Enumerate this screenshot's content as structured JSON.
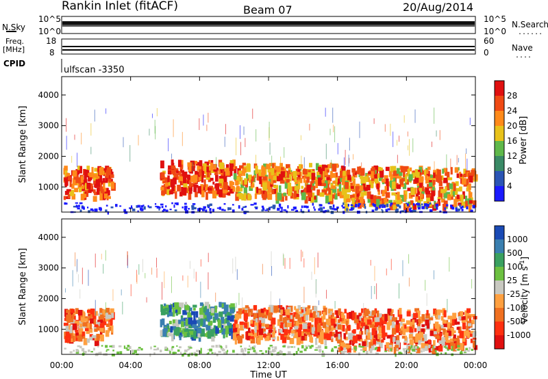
{
  "header": {
    "station": "Rankin Inlet (fitACF)",
    "beam": "Beam 07",
    "date": "20/Aug/2014"
  },
  "top_panels": {
    "nsky_label": "N.Sky",
    "nsearch_label": "N.Search",
    "nsky_ticks": [
      "10^5",
      "10^0"
    ],
    "nsearch_ticks": [
      "10^5",
      "10^0"
    ],
    "freq_label_1": "Freq.",
    "freq_label_2": "[MHz]",
    "freq_ticks": [
      "18",
      "8"
    ],
    "nave_label": "Nave",
    "nave_ticks": [
      "60",
      "0"
    ],
    "cpid_label": "CPID",
    "cpid_value": "ulfscan -3350",
    "dots": "......",
    "dots_short": "...."
  },
  "chart_data": [
    {
      "type": "heatmap",
      "ylabel": "Slant Range [km]",
      "yticks": [
        "1000",
        "2000",
        "3000",
        "4000"
      ],
      "ylim": [
        180,
        4600
      ],
      "xlim": [
        0,
        24
      ],
      "colorbar_title": "Power [dB]",
      "colorbar_ticks": [
        "4",
        "8",
        "12",
        "16",
        "20",
        "24",
        "28"
      ],
      "colors": [
        "#1a1aff",
        "#2b55b5",
        "#3a8a66",
        "#5fb84a",
        "#e8c21a",
        "#ff8a1a",
        "#f04a14",
        "#e01010"
      ],
      "echo_bands": [
        {
          "t0": 0.1,
          "t1": 2.9,
          "r0": 700,
          "r1": 1700,
          "level": 6
        },
        {
          "t0": 5.7,
          "t1": 9.9,
          "r0": 800,
          "r1": 1900,
          "level": 6
        },
        {
          "t0": 9.9,
          "t1": 16.0,
          "r0": 700,
          "r1": 1800,
          "level": 5
        },
        {
          "t0": 16.0,
          "t1": 23.9,
          "r0": 400,
          "r1": 1700,
          "level": 5
        }
      ]
    },
    {
      "type": "heatmap",
      "ylabel": "Slant Range [km]",
      "yticks": [
        "1000",
        "2000",
        "3000",
        "4000"
      ],
      "ylim": [
        180,
        4600
      ],
      "xlim": [
        0,
        24
      ],
      "xticks": [
        "00:00",
        "04:00",
        "08:00",
        "12:00",
        "16:00",
        "20:00",
        "00:00"
      ],
      "xlabel": "Time UT",
      "colorbar_title": "Velocity [m s",
      "colorbar_title_sup": "-1",
      "colorbar_title_end": "]",
      "colorbar_ticks": [
        "1000",
        "500",
        "100",
        "25",
        "-25",
        "-100",
        "-500",
        "-1000"
      ],
      "colors": [
        "#1a4ab5",
        "#3a7fb0",
        "#3aa060",
        "#6cc040",
        "#c8c8c0",
        "#ffa040",
        "#f07020",
        "#ff3010",
        "#e01010"
      ],
      "echo_bands": [
        {
          "t0": 0.1,
          "t1": 2.9,
          "r0": 700,
          "r1": 1700,
          "level": 6
        },
        {
          "t0": 5.7,
          "t1": 9.9,
          "r0": 800,
          "r1": 1900,
          "level": 2
        },
        {
          "t0": 9.9,
          "t1": 16.0,
          "r0": 700,
          "r1": 1800,
          "level": 6
        },
        {
          "t0": 16.0,
          "t1": 23.9,
          "r0": 400,
          "r1": 1700,
          "level": 6
        }
      ]
    }
  ]
}
